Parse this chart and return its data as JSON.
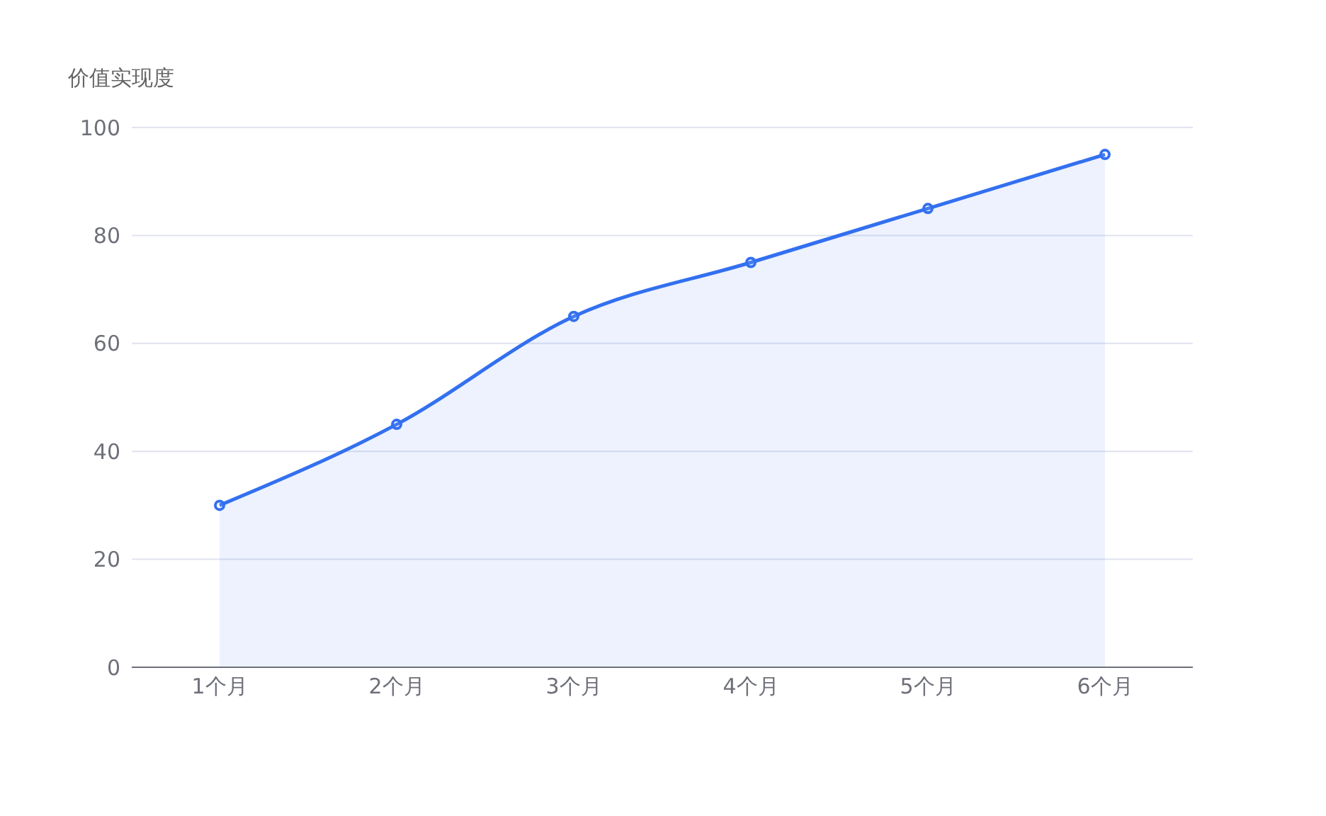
{
  "chart_data": {
    "type": "area",
    "ylabel": "价值实现度",
    "categories": [
      "1个月",
      "2个月",
      "3个月",
      "4个月",
      "5个月",
      "6个月"
    ],
    "series": [
      {
        "color": "#3370f0",
        "values": [
          30,
          45,
          65,
          75,
          85,
          95
        ]
      }
    ],
    "ylim": [
      0,
      100
    ],
    "yticks": [
      0,
      20,
      40,
      60,
      80,
      100
    ],
    "grid": "y",
    "marker": "circle",
    "line_style": "solid"
  }
}
